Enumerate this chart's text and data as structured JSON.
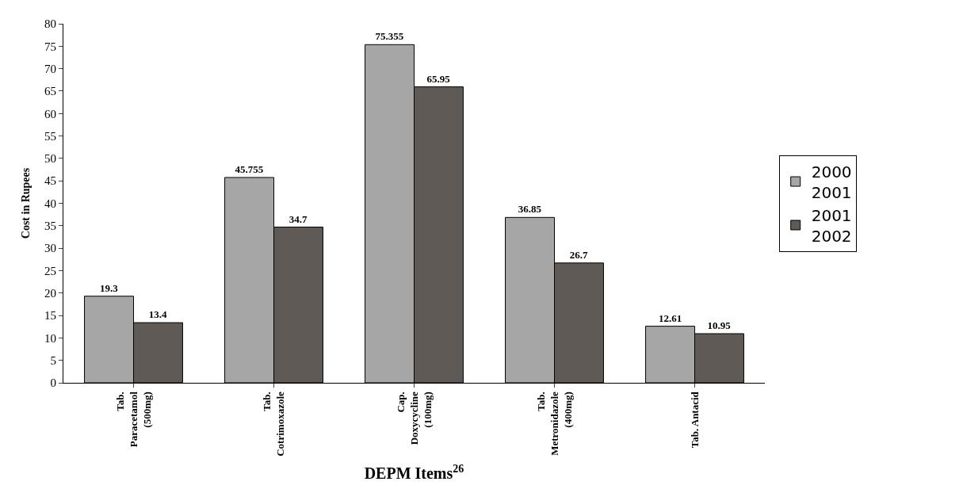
{
  "chart_data": {
    "type": "bar",
    "xlabel": "DEPM Items$^{26}$",
    "ylabel": "Cost in Rupees",
    "categories": [
      "Tab.\nParacetamol\n(500mg)",
      "Tab.\nCotrimoxazole",
      "Cap.\nDoxycycline\n(100mg)",
      "Tab.\nMetronidazole\n(400mg)",
      "Tab. Antacid"
    ],
    "series": [
      {
        "name": "2000\n2001",
        "color": "#a6a6a6",
        "values": [
          19.3,
          45.755,
          75.355,
          36.85,
          12.61
        ]
      },
      {
        "name": "2001\n2002",
        "color": "#5f5a56",
        "values": [
          13.4,
          34.7,
          65.95,
          26.7,
          10.95
        ]
      }
    ],
    "ylim": [
      0,
      80
    ],
    "yticks": [
      0,
      5,
      10,
      15,
      20,
      25,
      30,
      35,
      40,
      45,
      50,
      55,
      60,
      65,
      70,
      75,
      80
    ],
    "data_labels": true,
    "legend": "right"
  }
}
